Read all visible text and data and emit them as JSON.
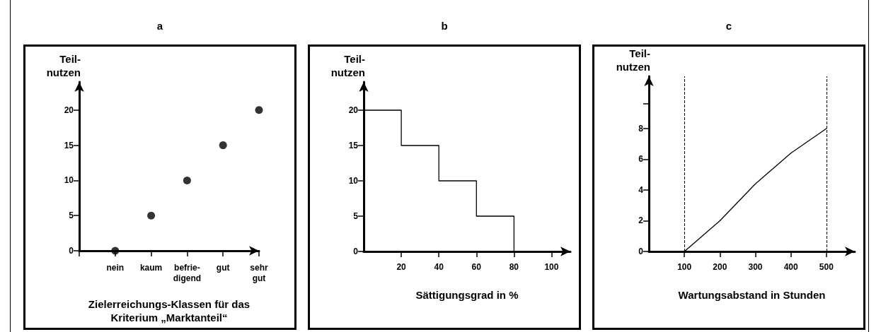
{
  "chart_data": [
    {
      "type": "scatter",
      "title": "a",
      "ylabel": "Teil-\nnutzen",
      "xlabel": "Zielerreichungs-Klassen für das Kriterium „Marktanteil“",
      "categories": [
        null,
        "nein",
        "kaum",
        "befrie-\ndigend",
        "gut",
        "sehr\ngut"
      ],
      "series": [
        {
          "color": "#000000",
          "values": [
            null,
            0,
            5,
            10,
            15,
            20
          ]
        }
      ],
      "ylim": [
        0,
        24
      ],
      "yticks": [
        0,
        5,
        10,
        15,
        20
      ],
      "marker": "circle"
    },
    {
      "type": "step",
      "title": "b",
      "ylabel": "Teil-\nnutzen",
      "xlabel": "Sättigungsgrad in %",
      "x": [
        0,
        20,
        40,
        60,
        80
      ],
      "series": [
        {
          "color": "#000000",
          "values": [
            20,
            15,
            10,
            5,
            0
          ]
        }
      ],
      "xlim": [
        0,
        110
      ],
      "xticks": [
        20,
        40,
        60,
        80,
        100
      ],
      "ylim": [
        0,
        24
      ],
      "yticks": [
        0,
        5,
        10,
        15,
        20
      ],
      "marker": "none"
    },
    {
      "type": "line",
      "title": "c",
      "ylabel": "Teil-\nnutzen",
      "xlabel": "Wartungsabstand in Stunden",
      "x": [
        100,
        200,
        300,
        400,
        500
      ],
      "series": [
        {
          "color": "#000000",
          "values": [
            0,
            2,
            4.4,
            6.4,
            8
          ]
        }
      ],
      "xlim": [
        0,
        580
      ],
      "xticks": [
        100,
        200,
        300,
        400,
        500
      ],
      "ylim": [
        0,
        11.4
      ],
      "yticks": [
        0,
        2,
        4,
        6,
        8,
        {
          "value": 9.6,
          "label": null
        }
      ],
      "marker": "none",
      "ref_lines": [
        {
          "axis": "x",
          "value": 100,
          "color": "#000000",
          "line_style": "dashed"
        },
        {
          "axis": "x",
          "value": 500,
          "color": "#000000",
          "line_style": "dashed"
        }
      ]
    }
  ]
}
